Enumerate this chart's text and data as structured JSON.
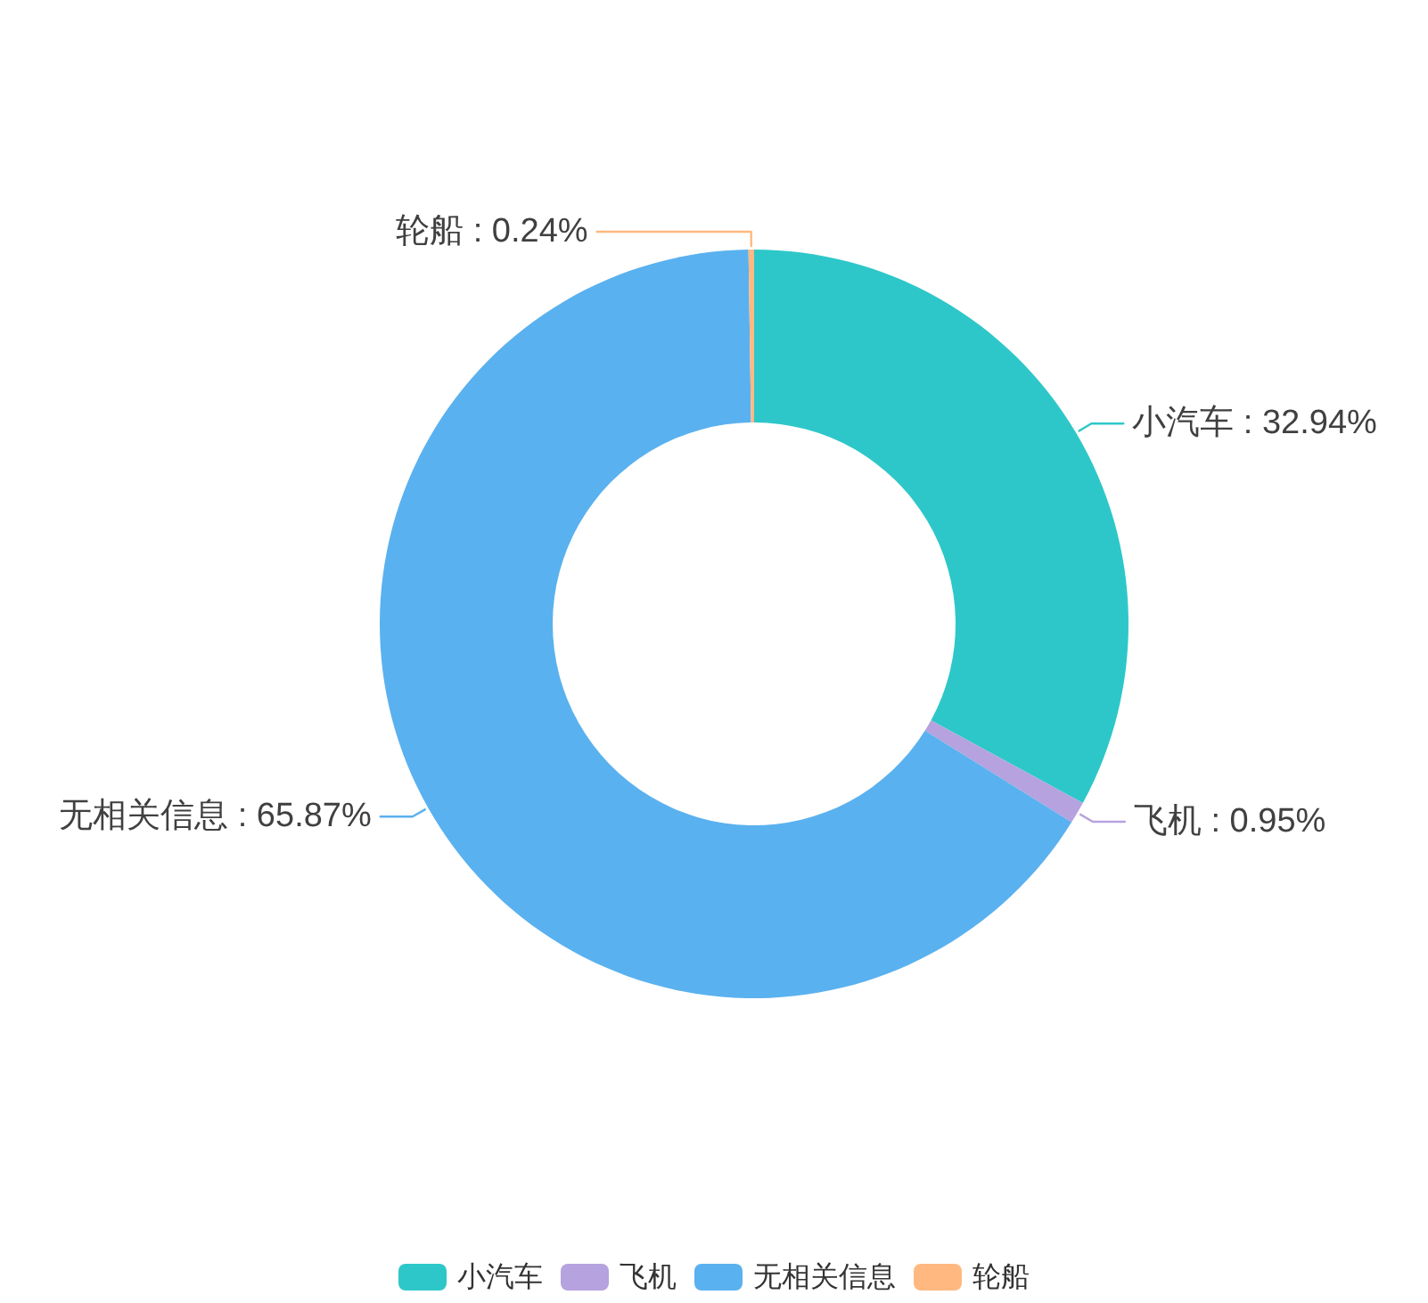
{
  "chart_data": {
    "type": "donut",
    "categories": [
      "小汽车",
      "飞机",
      "无相关信息",
      "轮船"
    ],
    "values": [
      32.94,
      0.95,
      65.87,
      0.24
    ],
    "colors": [
      "#2ec7c9",
      "#b6a2de",
      "#5ab1ef",
      "#ffb980"
    ],
    "value_labels": [
      "小汽车 : 32.94%",
      "飞机 : 0.95%",
      "无相关信息 : 65.87%",
      "轮船 : 0.24%"
    ],
    "legend": "bottom"
  }
}
